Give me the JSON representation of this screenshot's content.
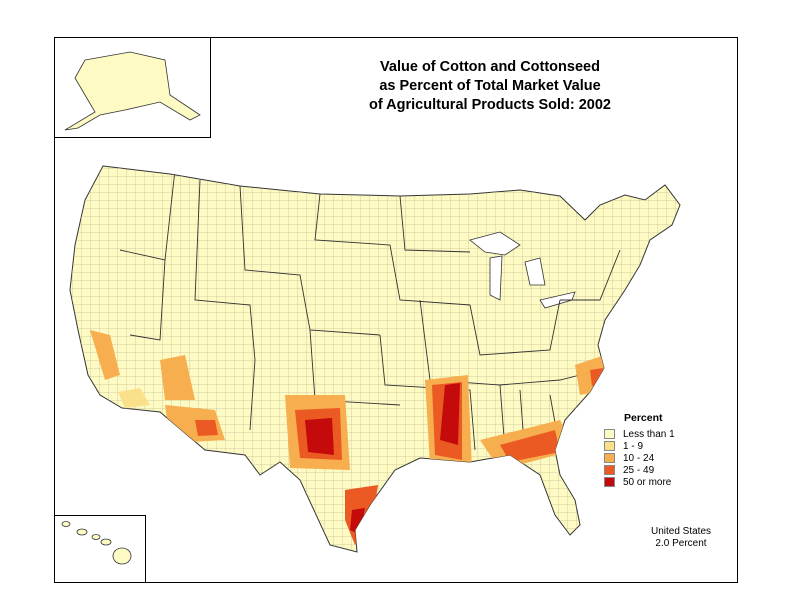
{
  "title": {
    "line1": "Value of Cotton and Cottonseed",
    "line2": "as Percent of Total Market Value",
    "line3": "of Agricultural Products Sold:  2002"
  },
  "legend": {
    "title": "Percent",
    "items": [
      {
        "label": "Less than 1",
        "color": "#fdfac4"
      },
      {
        "label": "1 - 9",
        "color": "#fbe08c"
      },
      {
        "label": "10 - 24",
        "color": "#f7ae4e"
      },
      {
        "label": "25 - 49",
        "color": "#ec5a24"
      },
      {
        "label": "50 or more",
        "color": "#c40a0a"
      }
    ]
  },
  "summary": {
    "line1": "United States",
    "line2": "2.0 Percent"
  },
  "colors": {
    "land": "#fdfac4",
    "border": "#333333",
    "county_line": "#a9a57a"
  }
}
